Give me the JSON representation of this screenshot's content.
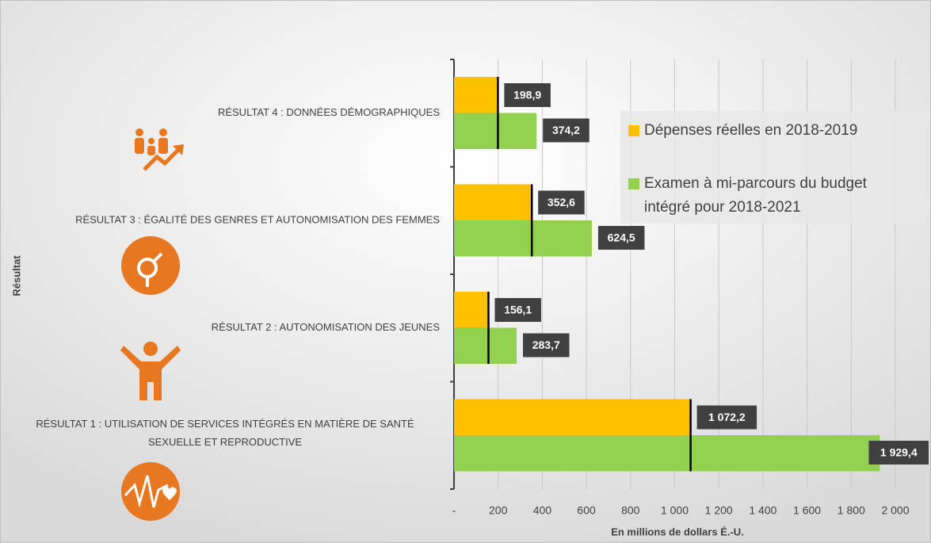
{
  "chart_data": {
    "type": "hbar",
    "categories": [
      "RÉSULTAT 4 : DONNÉES DÉMOGRAPHIQUES",
      "RÉSULTAT 3 : ÉGALITÉ DES GENRES ET AUTONOMISATION DES FEMMES",
      "RÉSULTAT 2 : AUTONOMISATION DES JEUNES",
      "RÉSULTAT 1 : UTILISATION DE SERVICES INTÉGRÉS EN MATIÈRE DE SANTÉ SEXUELLE ET REPRODUCTIVE"
    ],
    "series": [
      {
        "name": "Dépenses réelles en 2018-2019",
        "color": "#ffc000",
        "values": [
          198.9,
          352.6,
          156.1,
          1072.2
        ],
        "value_labels": [
          "198,9",
          "352,6",
          "156,1",
          "1 072,2"
        ]
      },
      {
        "name": "Examen à mi-parcours du budget intégré pour 2018-2021",
        "color": "#92d050",
        "values": [
          374.2,
          624.5,
          283.7,
          1929.4
        ],
        "value_labels": [
          "374,2",
          "624,5",
          "283,7",
          "1 929,4"
        ]
      }
    ],
    "xlim": [
      0,
      2000
    ],
    "xticks": [
      {
        "value": 0,
        "label": "-"
      },
      200,
      400,
      600,
      800,
      {
        "value": 1000,
        "label": "1 000"
      },
      {
        "value": 1200,
        "label": "1 200"
      },
      {
        "value": 1400,
        "label": "1 400"
      },
      {
        "value": 1600,
        "label": "1 600"
      },
      {
        "value": 1800,
        "label": "1 800"
      },
      {
        "value": 2000,
        "label": "2 000"
      }
    ],
    "xlabel": "En millions de dollars É.-U.",
    "ylabel": "Résultat",
    "grid": true,
    "legend": "top-right"
  }
}
